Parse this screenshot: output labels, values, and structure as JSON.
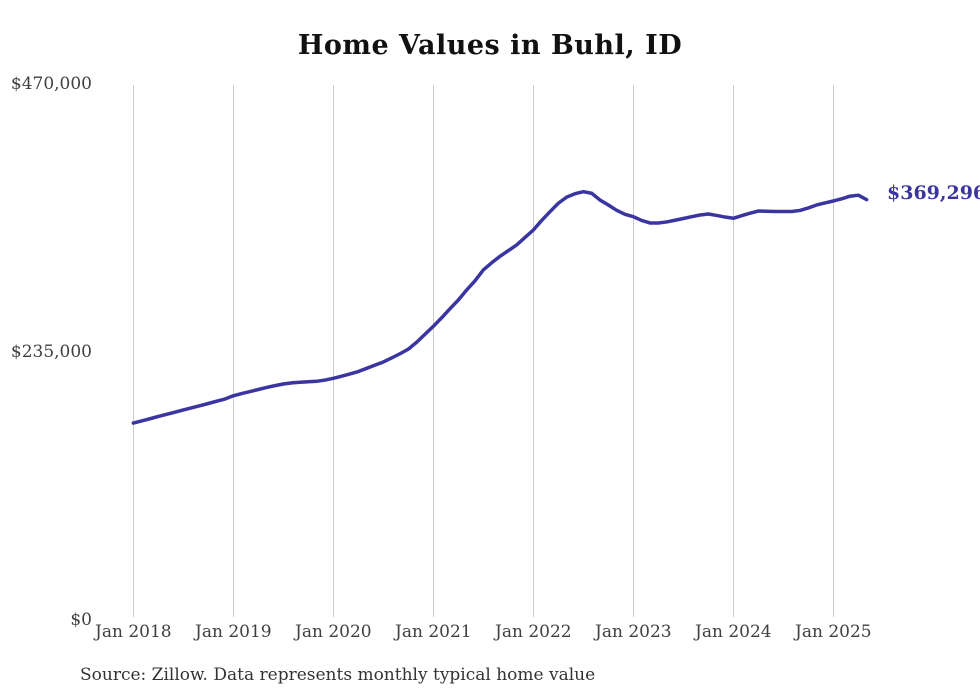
{
  "chart_data": {
    "type": "line",
    "title": "Home Values in Buhl, ID",
    "xlabel": "",
    "ylabel": "",
    "x_start": "Jan 2018",
    "x_end": "May 2025",
    "x_frequency": "monthly",
    "x_tick_labels": [
      "Jan 2018",
      "Jan 2019",
      "Jan 2020",
      "Jan 2021",
      "Jan 2022",
      "Jan 2023",
      "Jan 2024",
      "Jan 2025"
    ],
    "y_ticks": [
      {
        "label": "$470,000",
        "value": 470000
      },
      {
        "label": "$235,000",
        "value": 235000
      },
      {
        "label": "$0",
        "value": 0
      }
    ],
    "ylim": [
      0,
      470000
    ],
    "grid": "vertical-yearly-gridlines",
    "legend": "none",
    "series": [
      {
        "name": "Monthly typical home value",
        "color": "#3a35a0",
        "latest_value": 369296,
        "latest_value_label": "$369,296",
        "values": [
          173000,
          174900,
          176800,
          178800,
          180700,
          182600,
          184500,
          186400,
          188300,
          190200,
          192200,
          194100,
          197000,
          198900,
          200700,
          202500,
          204300,
          205900,
          207300,
          208300,
          208900,
          209300,
          209700,
          210800,
          212300,
          214200,
          216200,
          218300,
          221100,
          223900,
          226700,
          230200,
          233900,
          238000,
          244000,
          251000,
          258000,
          265500,
          273500,
          281100,
          289900,
          298000,
          307500,
          313800,
          319500,
          324500,
          329500,
          336100,
          342600,
          351000,
          358700,
          366100,
          371500,
          374500,
          376300,
          374900,
          369000,
          364600,
          359900,
          356400,
          354300,
          351000,
          348800,
          348800,
          349700,
          351200,
          352700,
          354300,
          355800,
          356700,
          355400,
          354000,
          352900,
          355200,
          357400,
          359300,
          359100,
          358900,
          358900,
          358900,
          359800,
          362000,
          364600,
          366400,
          368100,
          370000,
          372300,
          373200,
          369296
        ]
      }
    ],
    "source_note": "Source: Zillow. Data represents monthly typical home value"
  },
  "colors": {
    "line": "#3a35a0",
    "gridline": "#cccccc",
    "tick_text": "#404040",
    "title_text": "#111111",
    "source_text": "#333333",
    "background": "#ffffff"
  }
}
